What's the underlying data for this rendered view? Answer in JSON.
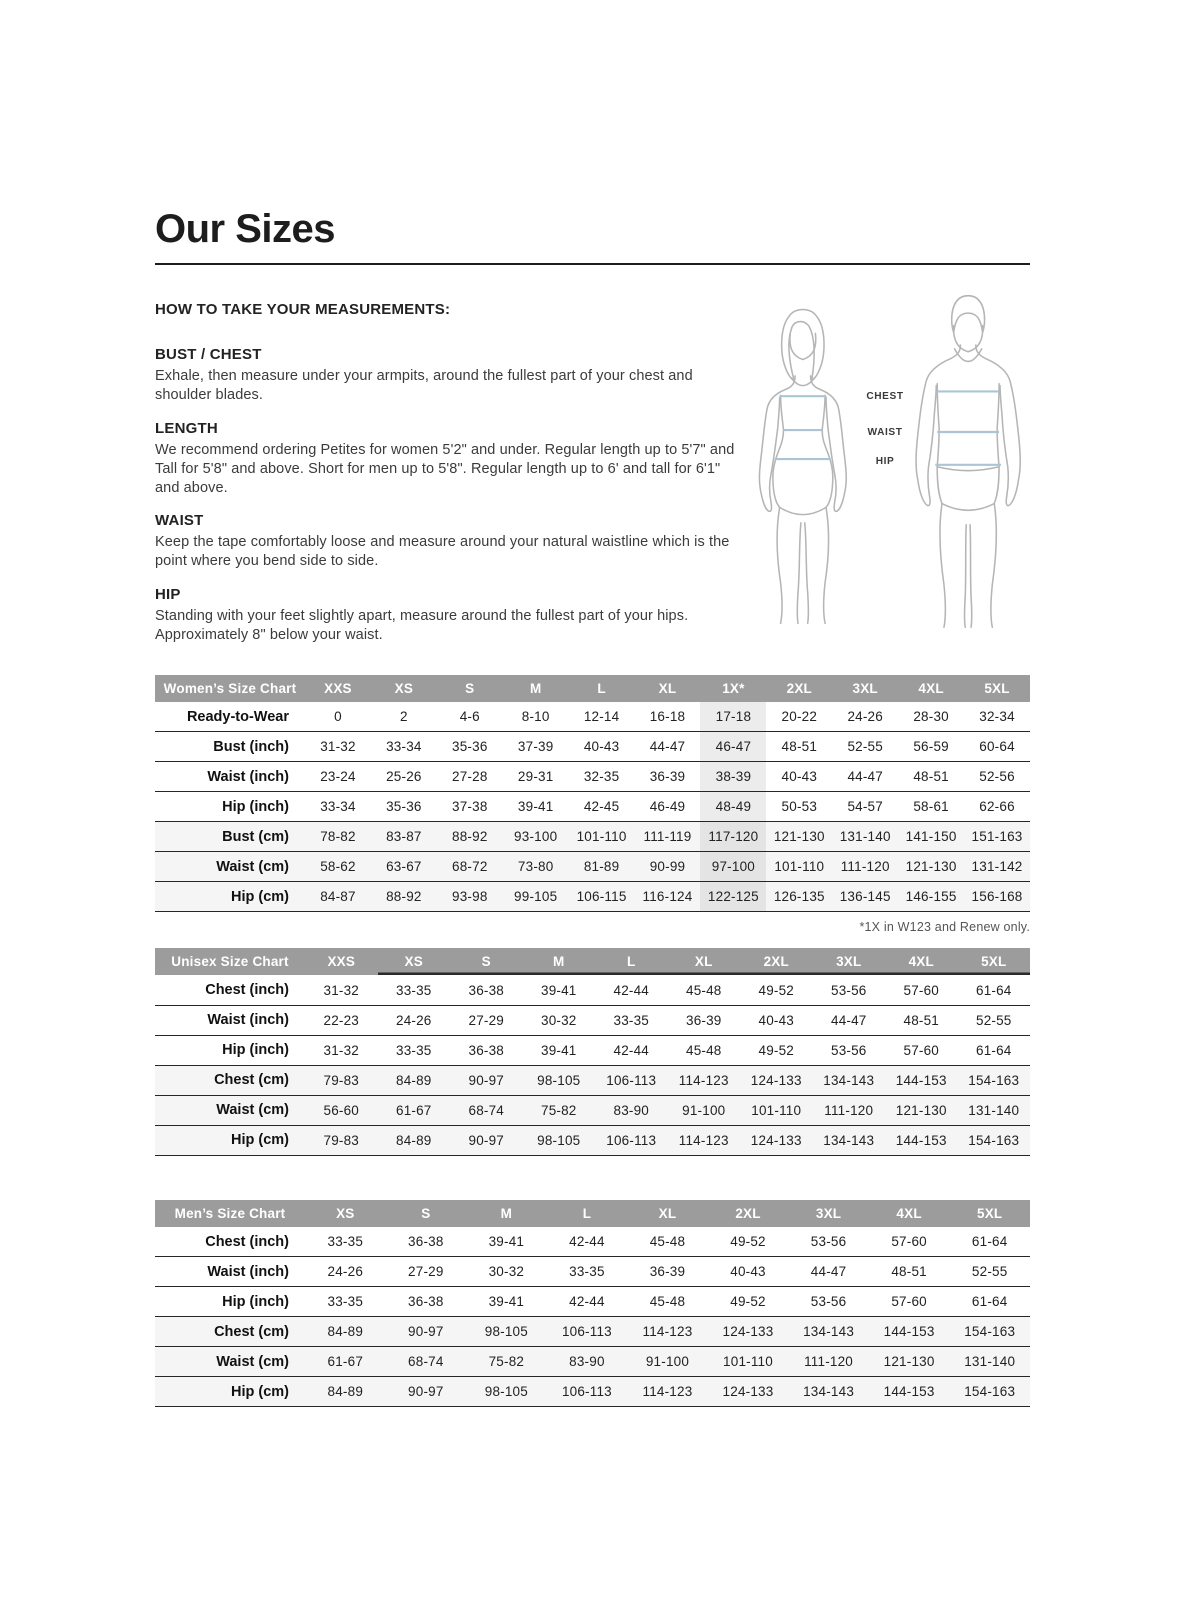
{
  "page": {
    "title": "Our Sizes",
    "how_to_heading": "HOW TO TAKE YOUR MEASUREMENTS:",
    "sections": [
      {
        "heading": "BUST / CHEST",
        "body": "Exhale, then measure under your armpits, around the fullest part of your chest and shoulder blades."
      },
      {
        "heading": "LENGTH",
        "body": "We recommend ordering Petites for women 5'2\" and under. Regular length up to 5'7\" and Tall for 5'8\" and above. Short for men up to 5'8\". Regular length up to 6' and tall for 6'1\" and above."
      },
      {
        "heading": "WAIST",
        "body": "Keep the tape comfortably loose and measure around your natural waistline which is the point where you bend side to side."
      },
      {
        "heading": "HIP",
        "body": "Standing with your feet slightly apart, measure around the fullest part of your hips. Approximately 8\" below your waist."
      }
    ],
    "figure_labels": {
      "chest": "CHEST",
      "waist": "WAIST",
      "hip": "HIP"
    }
  },
  "tables": [
    {
      "title": "Women’s Size Chart",
      "columns": [
        "XXS",
        "XS",
        "S",
        "M",
        "L",
        "XL",
        "1X*",
        "2XL",
        "3XL",
        "4XL",
        "5XL"
      ],
      "rows": [
        {
          "label": "Ready-to-Wear",
          "values": [
            "0",
            "2",
            "4-6",
            "8-10",
            "12-14",
            "16-18",
            "17-18",
            "20-22",
            "24-26",
            "28-30",
            "32-34"
          ]
        },
        {
          "label": "Bust (inch)",
          "values": [
            "31-32",
            "33-34",
            "35-36",
            "37-39",
            "40-43",
            "44-47",
            "46-47",
            "48-51",
            "52-55",
            "56-59",
            "60-64"
          ]
        },
        {
          "label": "Waist (inch)",
          "values": [
            "23-24",
            "25-26",
            "27-28",
            "29-31",
            "32-35",
            "36-39",
            "38-39",
            "40-43",
            "44-47",
            "48-51",
            "52-56"
          ]
        },
        {
          "label": "Hip (inch)",
          "values": [
            "33-34",
            "35-36",
            "37-38",
            "39-41",
            "42-45",
            "46-49",
            "48-49",
            "50-53",
            "54-57",
            "58-61",
            "62-66"
          ]
        },
        {
          "label": "Bust (cm)",
          "values": [
            "78-82",
            "83-87",
            "88-92",
            "93-100",
            "101-110",
            "111-119",
            "117-120",
            "121-130",
            "131-140",
            "141-150",
            "151-163"
          ]
        },
        {
          "label": "Waist (cm)",
          "values": [
            "58-62",
            "63-67",
            "68-72",
            "73-80",
            "81-89",
            "90-99",
            "97-100",
            "101-110",
            "111-120",
            "121-130",
            "131-142"
          ]
        },
        {
          "label": "Hip (cm)",
          "values": [
            "84-87",
            "88-92",
            "93-98",
            "99-105",
            "106-115",
            "116-124",
            "122-125",
            "126-135",
            "136-145",
            "146-155",
            "156-168"
          ]
        }
      ],
      "footnote": "*1X in W123 and Renew only."
    },
    {
      "title": "Unisex Size Chart",
      "columns": [
        "XXS",
        "XS",
        "S",
        "M",
        "L",
        "XL",
        "2XL",
        "3XL",
        "4XL",
        "5XL"
      ],
      "rows": [
        {
          "label": "Chest (inch)",
          "values": [
            "31-32",
            "33-35",
            "36-38",
            "39-41",
            "42-44",
            "45-48",
            "49-52",
            "53-56",
            "57-60",
            "61-64"
          ]
        },
        {
          "label": "Waist (inch)",
          "values": [
            "22-23",
            "24-26",
            "27-29",
            "30-32",
            "33-35",
            "36-39",
            "40-43",
            "44-47",
            "48-51",
            "52-55"
          ]
        },
        {
          "label": "Hip (inch)",
          "values": [
            "31-32",
            "33-35",
            "36-38",
            "39-41",
            "42-44",
            "45-48",
            "49-52",
            "53-56",
            "57-60",
            "61-64"
          ]
        },
        {
          "label": "Chest (cm)",
          "values": [
            "79-83",
            "84-89",
            "90-97",
            "98-105",
            "106-113",
            "114-123",
            "124-133",
            "134-143",
            "144-153",
            "154-163"
          ]
        },
        {
          "label": "Waist (cm)",
          "values": [
            "56-60",
            "61-67",
            "68-74",
            "75-82",
            "83-90",
            "91-100",
            "101-110",
            "111-120",
            "121-130",
            "131-140"
          ]
        },
        {
          "label": "Hip (cm)",
          "values": [
            "79-83",
            "84-89",
            "90-97",
            "98-105",
            "106-113",
            "114-123",
            "124-133",
            "134-143",
            "144-153",
            "154-163"
          ]
        }
      ]
    },
    {
      "title": "Men’s Size Chart",
      "columns": [
        "XS",
        "S",
        "M",
        "L",
        "XL",
        "2XL",
        "3XL",
        "4XL",
        "5XL"
      ],
      "rows": [
        {
          "label": "Chest (inch)",
          "values": [
            "33-35",
            "36-38",
            "39-41",
            "42-44",
            "45-48",
            "49-52",
            "53-56",
            "57-60",
            "61-64"
          ]
        },
        {
          "label": "Waist (inch)",
          "values": [
            "24-26",
            "27-29",
            "30-32",
            "33-35",
            "36-39",
            "40-43",
            "44-47",
            "48-51",
            "52-55"
          ]
        },
        {
          "label": "Hip (inch)",
          "values": [
            "33-35",
            "36-38",
            "39-41",
            "42-44",
            "45-48",
            "49-52",
            "53-56",
            "57-60",
            "61-64"
          ]
        },
        {
          "label": "Chest (cm)",
          "values": [
            "84-89",
            "90-97",
            "98-105",
            "106-113",
            "114-123",
            "124-133",
            "134-143",
            "144-153",
            "154-163"
          ]
        },
        {
          "label": "Waist (cm)",
          "values": [
            "61-67",
            "68-74",
            "75-82",
            "83-90",
            "91-100",
            "101-110",
            "111-120",
            "121-130",
            "131-140"
          ]
        },
        {
          "label": "Hip (cm)",
          "values": [
            "84-89",
            "90-97",
            "98-105",
            "106-113",
            "114-123",
            "124-133",
            "134-143",
            "144-153",
            "154-163"
          ]
        }
      ]
    }
  ],
  "colors": {
    "header_bg": "#9c9c9c",
    "header_text": "#ffffff",
    "row_shade": "#f5f5f5",
    "column_highlight": "#ececec",
    "column_highlight_shaded": "#e4e4e4",
    "measure_line": "#aac6d4",
    "figure_outline": "#b5b5b5",
    "rule": "#1d1d1d"
  }
}
